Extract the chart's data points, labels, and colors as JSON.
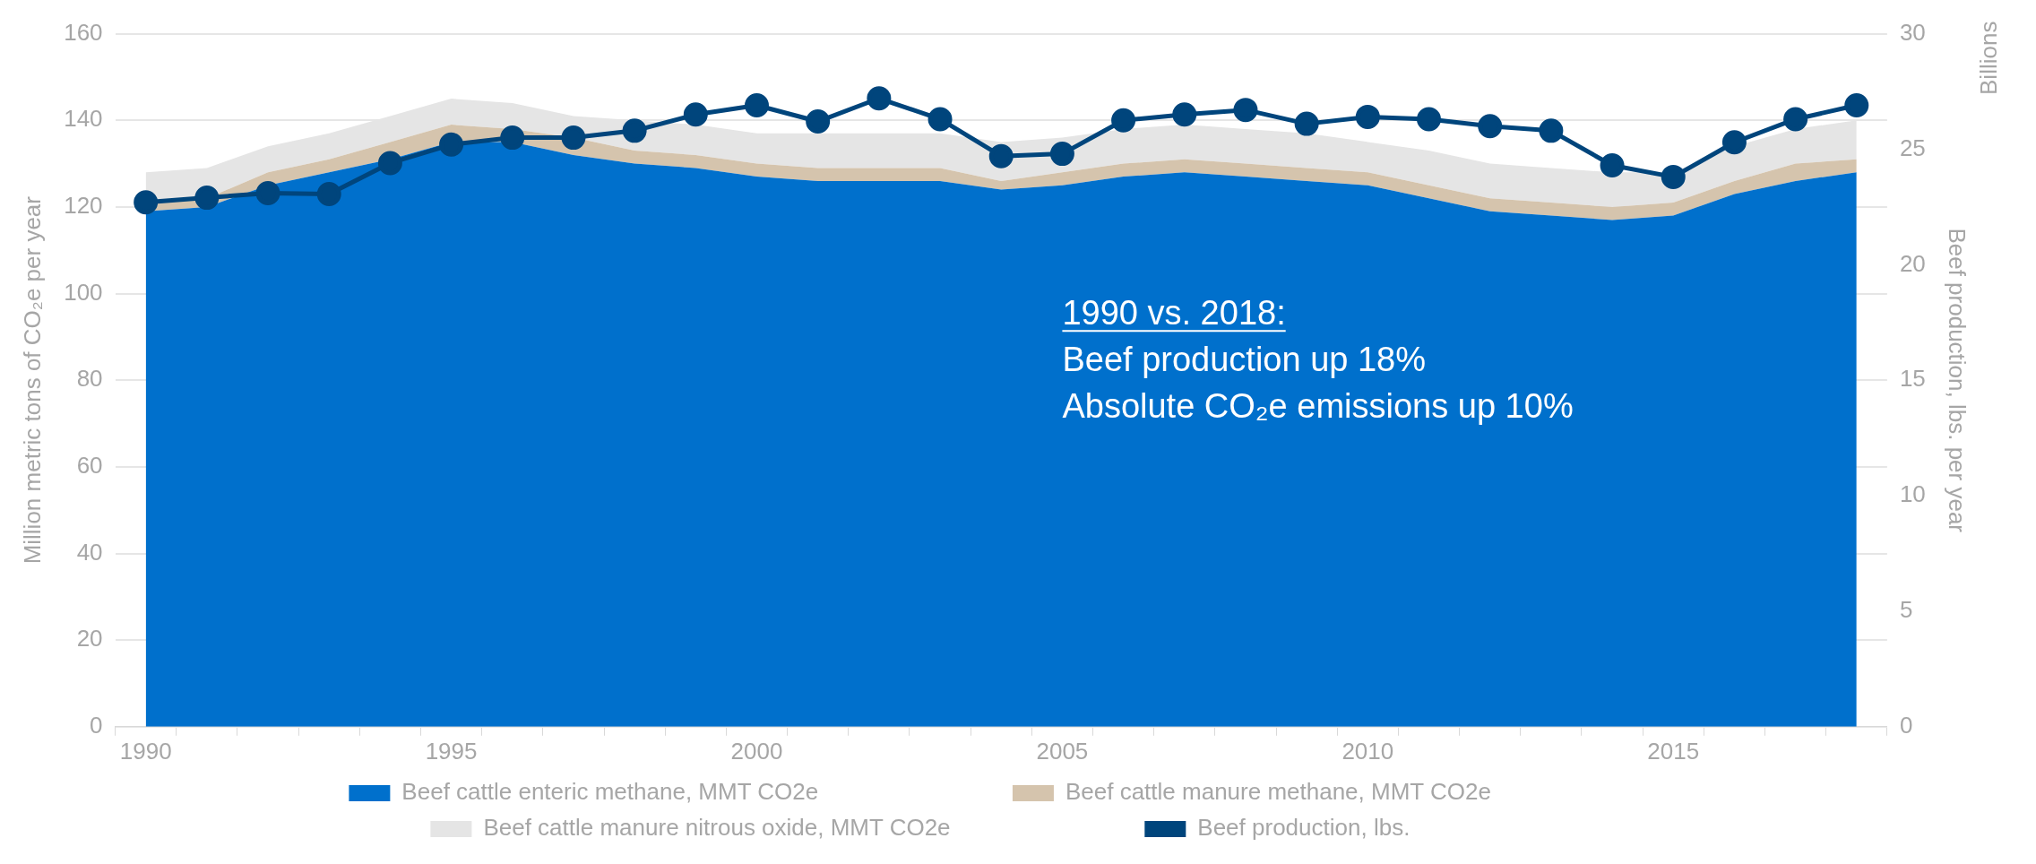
{
  "chart_data": {
    "type": "area",
    "stacked": true,
    "categories": [
      "1990",
      null,
      null,
      null,
      null,
      "1995",
      null,
      null,
      null,
      null,
      "2000",
      null,
      null,
      null,
      null,
      "2005",
      null,
      null,
      null,
      null,
      "2010",
      null,
      null,
      null,
      null,
      "2015",
      null,
      null,
      null
    ],
    "series": [
      {
        "name": "Beef cattle enteric methane, MMT CO2e",
        "color": "#0070cc",
        "values": [
          119,
          120,
          125,
          128,
          131,
          135,
          135,
          132,
          130,
          129,
          127,
          126,
          126,
          126,
          124,
          125,
          127,
          128,
          127,
          126,
          125,
          122,
          119,
          118,
          117,
          118,
          123,
          126,
          128
        ]
      },
      {
        "name": "Beef cattle manure methane, MMT CO2e",
        "color": "#d5c4ad",
        "values": [
          2,
          2,
          3,
          3,
          4,
          4,
          3,
          4,
          3,
          3,
          3,
          3,
          3,
          3,
          2,
          3,
          3,
          3,
          3,
          3,
          3,
          3,
          3,
          3,
          3,
          3,
          3,
          4,
          3
        ]
      },
      {
        "name": "Beef cattle manure nitrous oxide, MMT CO2e",
        "color": "#e5e5e5",
        "values": [
          7,
          7,
          6,
          6,
          6,
          6,
          6,
          5,
          7,
          7,
          7,
          8,
          8,
          8,
          9,
          8,
          8,
          8,
          8,
          8,
          7,
          8,
          8,
          8,
          8,
          7,
          8,
          8,
          9
        ]
      },
      {
        "name": "Beef production, lbs.",
        "type": "line",
        "axis": "y2",
        "color": "#00457c",
        "marker": "circle",
        "values": [
          22.7,
          22.9,
          23.1,
          23.06,
          24.4,
          25.2,
          25.5,
          25.5,
          25.8,
          26.5,
          26.9,
          26.2,
          27.2,
          26.3,
          24.7,
          24.8,
          26.25,
          26.5,
          26.7,
          26.1,
          26.4,
          26.3,
          26.0,
          25.8,
          24.3,
          23.8,
          25.3,
          26.3,
          26.9
        ]
      }
    ],
    "ylabel": "Million metric tons of CO₂e per year",
    "y2label": "Beef production, lbs. per year",
    "ylim": [
      0,
      160
    ],
    "yticks": [
      0,
      20,
      40,
      60,
      80,
      100,
      120,
      140,
      160
    ],
    "y2lim": [
      0,
      30
    ],
    "y2ticks": [
      0,
      5,
      10,
      15,
      20,
      25,
      30
    ],
    "annotations": [
      "1990 vs. 2018:",
      "Beef production up 18%",
      "Absolute CO₂e emissions up 10%",
      "Billions"
    ],
    "grid": "y",
    "legend": "bottom"
  }
}
